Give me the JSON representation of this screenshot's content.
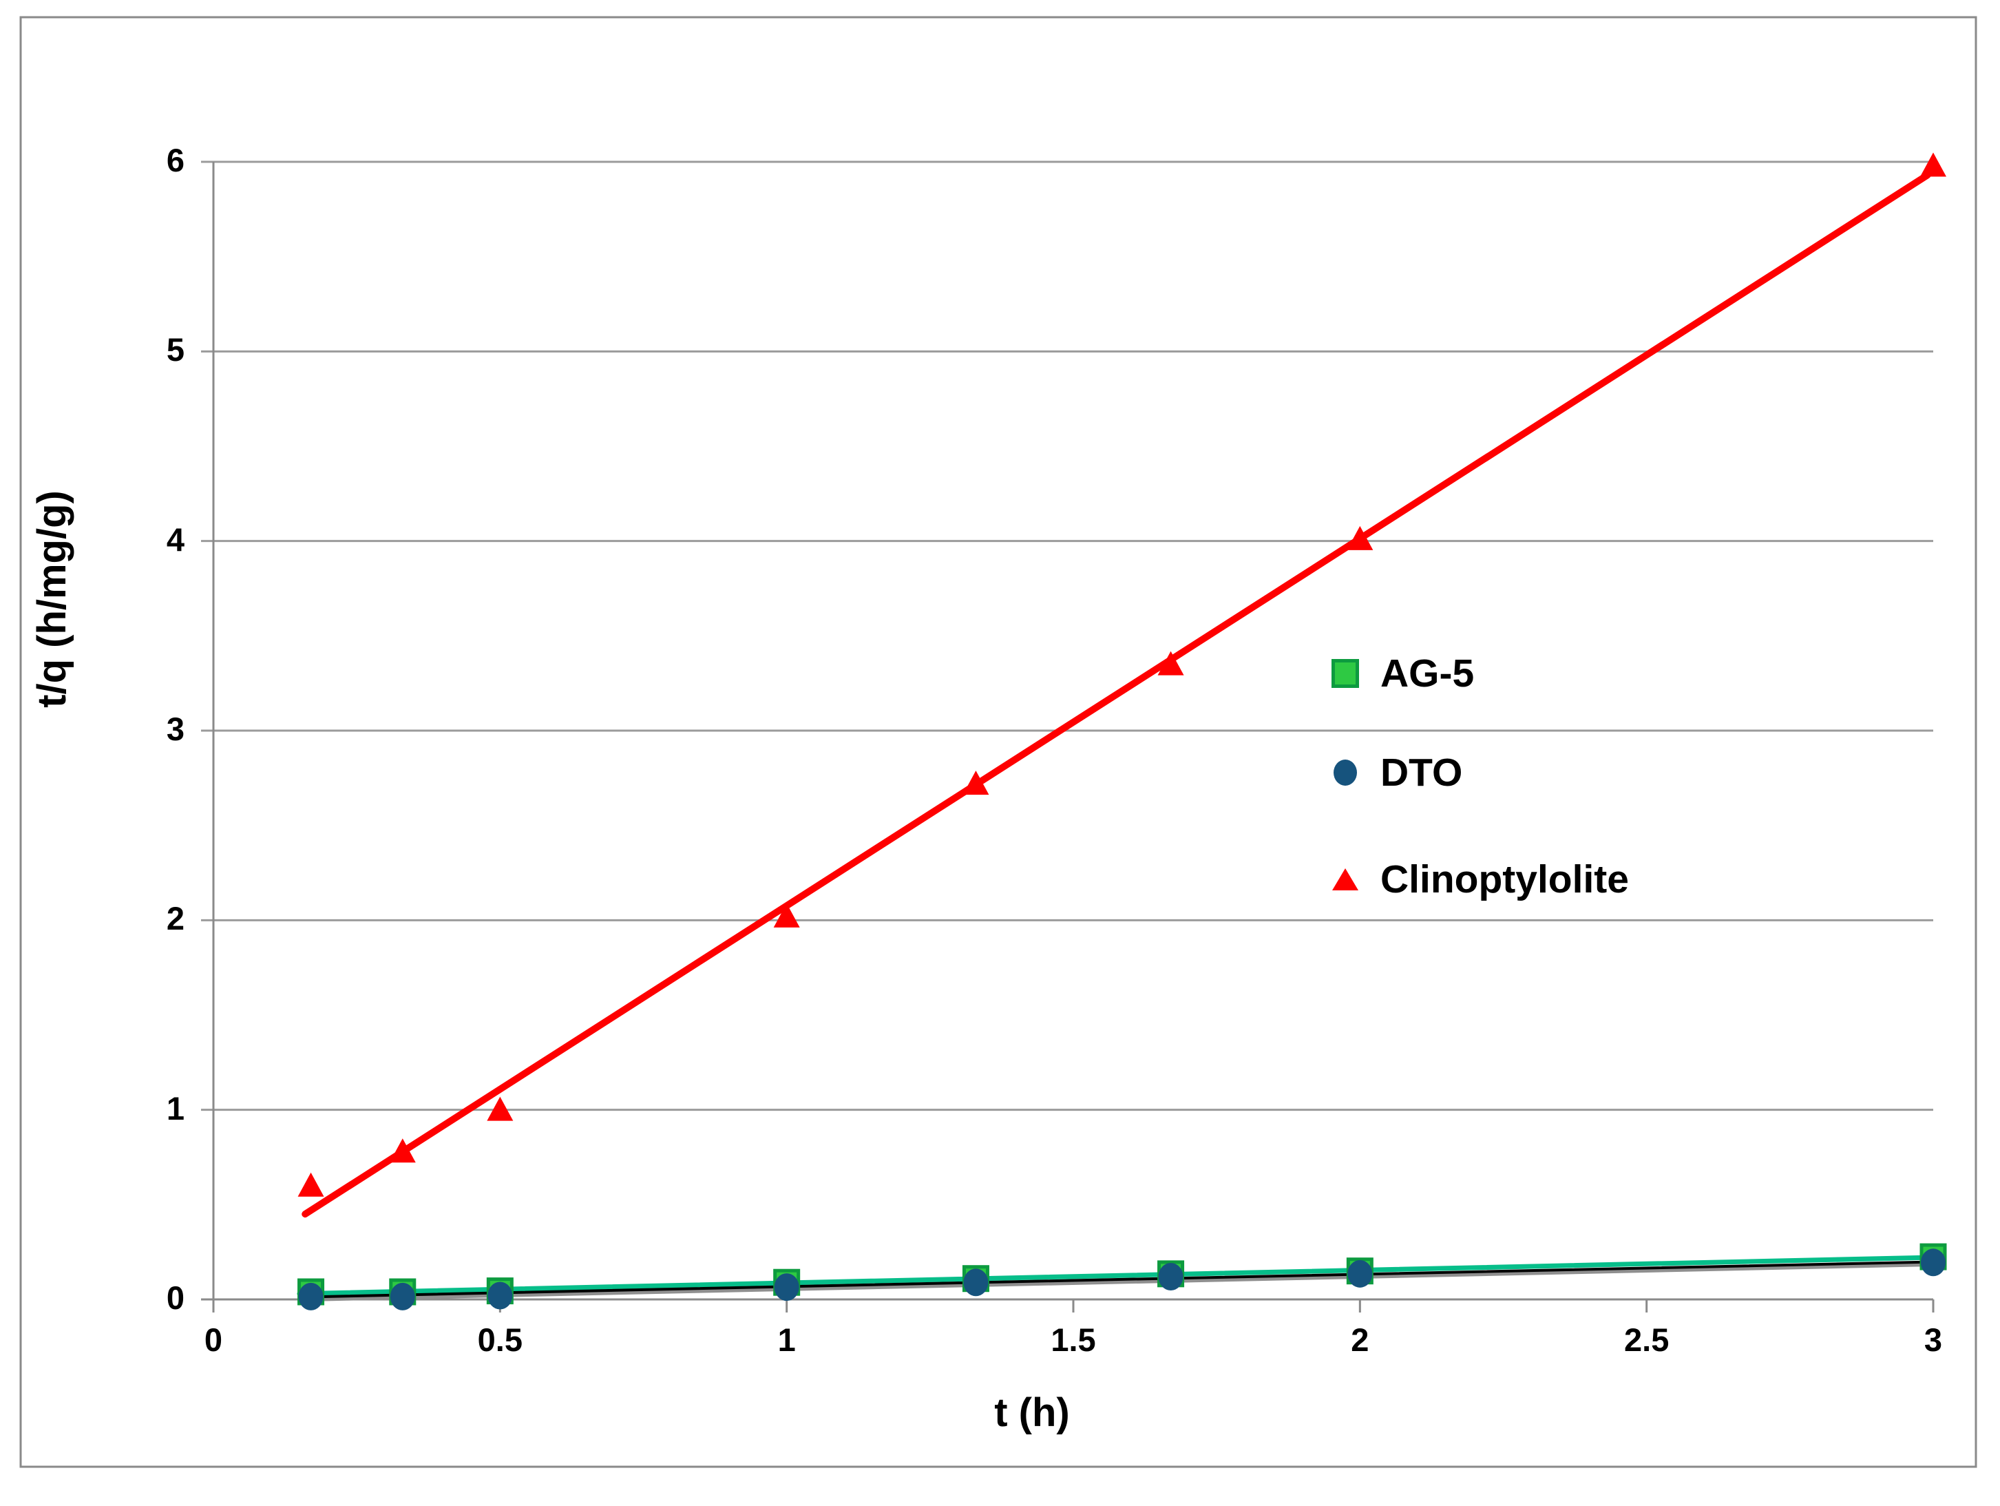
{
  "figure": {
    "background": "#ffffff",
    "border_color": "#8a8a8a"
  },
  "axes": {
    "x": {
      "title": "t (h)",
      "range": [
        0,
        3
      ],
      "tick_values": [
        0,
        0.5,
        1,
        1.5,
        2,
        2.5,
        3
      ],
      "tick_labels": [
        "0",
        "0.5",
        "1",
        "1.5",
        "2",
        "2.5",
        "3"
      ]
    },
    "y": {
      "title": "t/q (h/mg/g)",
      "range": [
        0,
        6
      ],
      "tick_values": [
        0,
        1,
        2,
        3,
        4,
        5,
        6
      ],
      "tick_labels": [
        "0",
        "1",
        "2",
        "3",
        "4",
        "5",
        "6"
      ]
    },
    "grid": {
      "horizontal": true,
      "vertical": false,
      "color": "#9b9b9b"
    },
    "axis_color": "#8a8a8a"
  },
  "legend": {
    "position": "center-right",
    "border": false,
    "items": [
      {
        "label": "AG-5",
        "marker": "square",
        "color": "#2ec943"
      },
      {
        "label": "DTO",
        "marker": "circle",
        "color": "#16537d"
      },
      {
        "label": "Clinoptylolite",
        "marker": "triangle",
        "color": "#fe0000"
      }
    ]
  },
  "chart_data": {
    "type": "scatter",
    "title": "",
    "xlabel": "t (h)",
    "ylabel": "t/q (h/mg/g)",
    "xlim": [
      0,
      3
    ],
    "ylim": [
      0,
      6
    ],
    "grid": "horizontal",
    "legend_position": "center-right",
    "x": [
      0.17,
      0.33,
      0.5,
      1,
      1.33,
      1.67,
      2,
      3
    ],
    "series": [
      {
        "name": "Clinoptylolite",
        "marker": "triangle",
        "color": "#fe0000",
        "values": [
          0.6,
          0.78,
          1.0,
          2.02,
          2.72,
          3.35,
          4.01,
          5.98
        ],
        "trendline": {
          "color": "#fe0000",
          "width": 10,
          "x1": 0.16,
          "y1": 0.45,
          "x2": 2.99,
          "y2": 5.93
        }
      },
      {
        "name": "AG-5",
        "marker": "square",
        "color": "#2ec943",
        "marker_border": "#0d9b3f",
        "values": [
          0.04,
          0.04,
          0.045,
          0.09,
          0.11,
          0.135,
          0.15,
          0.225
        ],
        "trendline": {
          "color": "#07be8a",
          "width": 7,
          "x1": 0.15,
          "y1": 0.03,
          "x2": 2.98,
          "y2": 0.22
        }
      },
      {
        "name": "DTO",
        "marker": "circle",
        "color": "#16537d",
        "values": [
          0.015,
          0.015,
          0.02,
          0.065,
          0.09,
          0.12,
          0.135,
          0.195
        ],
        "trendline": {
          "color": "#000000",
          "width": 4,
          "halo_color": "#8f8f8f",
          "x1": 0.15,
          "y1": 0.012,
          "x2": 3.0,
          "y2": 0.198
        }
      }
    ]
  }
}
